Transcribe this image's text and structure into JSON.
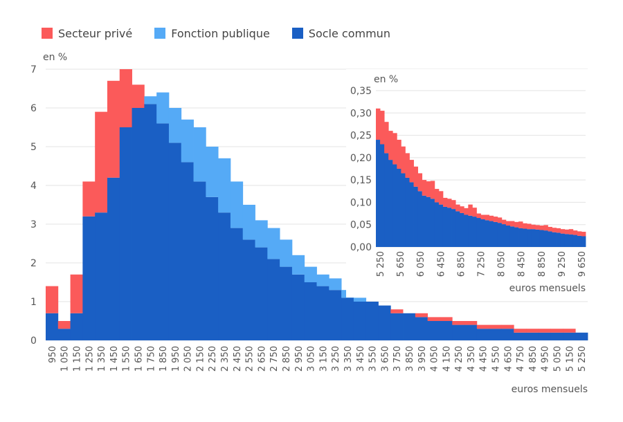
{
  "legend": [
    {
      "name": "Secteur privé",
      "color": "#fb5a5a"
    },
    {
      "name": "Fonction publique",
      "color": "#55aaf6"
    },
    {
      "name": "Socle commun",
      "color": "#1a5fc4"
    }
  ],
  "chart_data": [
    {
      "type": "bar",
      "stacked": true,
      "ylabel": "en %",
      "xlabel": "euros mensuels",
      "ylim": [
        0,
        7
      ],
      "yticks": [
        "0",
        "1",
        "2",
        "3",
        "4",
        "5",
        "6",
        "7"
      ],
      "grid": true,
      "categories": [
        "950",
        "1 050",
        "1 150",
        "1 250",
        "1 350",
        "1 450",
        "1 550",
        "1 650",
        "1 750",
        "1 850",
        "1 950",
        "2 050",
        "2 150",
        "2 250",
        "2 350",
        "2 450",
        "2 550",
        "2 650",
        "2 750",
        "2 850",
        "2 950",
        "3 050",
        "3 150",
        "3 250",
        "3 350",
        "3 450",
        "3 550",
        "3 650",
        "3 750",
        "3 850",
        "3 950",
        "4 050",
        "4 150",
        "4 250",
        "4 350",
        "4 450",
        "4 550",
        "4 650",
        "4 750",
        "4 850",
        "4 950",
        "5 050",
        "5 150",
        "5 250"
      ],
      "series": [
        {
          "name": "Socle commun",
          "values": [
            0.7,
            0.3,
            0.7,
            3.2,
            3.3,
            4.2,
            5.5,
            6.0,
            6.1,
            5.6,
            5.1,
            4.6,
            4.1,
            3.7,
            3.3,
            2.9,
            2.6,
            2.4,
            2.1,
            1.9,
            1.7,
            1.5,
            1.4,
            1.3,
            1.1,
            1.0,
            1.0,
            0.9,
            0.7,
            0.7,
            0.6,
            0.5,
            0.5,
            0.4,
            0.4,
            0.3,
            0.3,
            0.3,
            0.2,
            0.2,
            0.2,
            0.2,
            0.2,
            0.2
          ]
        },
        {
          "name": "Fonction publique",
          "values": [
            0,
            0,
            0,
            0,
            0,
            0,
            0,
            0,
            0.2,
            0.8,
            0.9,
            1.1,
            1.4,
            1.3,
            1.4,
            1.2,
            0.9,
            0.7,
            0.8,
            0.7,
            0.5,
            0.4,
            0.3,
            0.3,
            0.2,
            0.1,
            0,
            0,
            0,
            0,
            0,
            0,
            0,
            0,
            0,
            0,
            0,
            0,
            0,
            0,
            0,
            0,
            0,
            0
          ]
        },
        {
          "name": "Secteur privé",
          "values": [
            0.7,
            0.2,
            1.0,
            0.9,
            2.6,
            2.5,
            1.5,
            0.6,
            0,
            0,
            0,
            0,
            0,
            0,
            0,
            0,
            0,
            0,
            0,
            0,
            0,
            0,
            0,
            0,
            0,
            0,
            0,
            0,
            0.1,
            0,
            0.1,
            0.1,
            0.1,
            0.1,
            0.1,
            0.1,
            0.1,
            0.1,
            0.1,
            0.1,
            0.1,
            0.1,
            0.1,
            0
          ]
        }
      ]
    },
    {
      "type": "bar",
      "stacked": true,
      "inset": true,
      "ylabel": "en %",
      "xlabel": "euros mensuels",
      "ylim": [
        0,
        0.35
      ],
      "yticks": [
        "0,00",
        "0,05",
        "0,10",
        "0,15",
        "0,20",
        "0,25",
        "0,30",
        "0,35"
      ],
      "grid": true,
      "xticks": [
        "5 250",
        "5 650",
        "6 050",
        "6 450",
        "6 850",
        "7 250",
        "8 050",
        "8 450",
        "8 850",
        "9 250",
        "9 650"
      ],
      "bins": 50,
      "series": [
        {
          "name": "Socle commun",
          "values": [
            0.24,
            0.23,
            0.21,
            0.195,
            0.185,
            0.175,
            0.165,
            0.155,
            0.145,
            0.135,
            0.125,
            0.115,
            0.112,
            0.108,
            0.1,
            0.095,
            0.09,
            0.088,
            0.085,
            0.08,
            0.076,
            0.072,
            0.07,
            0.068,
            0.065,
            0.062,
            0.06,
            0.058,
            0.056,
            0.054,
            0.051,
            0.048,
            0.046,
            0.044,
            0.042,
            0.041,
            0.04,
            0.04,
            0.039,
            0.038,
            0.037,
            0.035,
            0.033,
            0.032,
            0.03,
            0.029,
            0.028,
            0.027,
            0.025,
            0.024
          ]
        },
        {
          "name": "Secteur privé",
          "values": [
            0.07,
            0.075,
            0.07,
            0.065,
            0.07,
            0.065,
            0.06,
            0.055,
            0.05,
            0.045,
            0.04,
            0.035,
            0.035,
            0.04,
            0.03,
            0.03,
            0.02,
            0.02,
            0.02,
            0.015,
            0.015,
            0.015,
            0.025,
            0.02,
            0.01,
            0.01,
            0.012,
            0.012,
            0.012,
            0.012,
            0.01,
            0.01,
            0.012,
            0.012,
            0.015,
            0.012,
            0.012,
            0.01,
            0.01,
            0.01,
            0.012,
            0.01,
            0.01,
            0.01,
            0.01,
            0.01,
            0.012,
            0.01,
            0.01,
            0.01
          ]
        }
      ]
    }
  ]
}
